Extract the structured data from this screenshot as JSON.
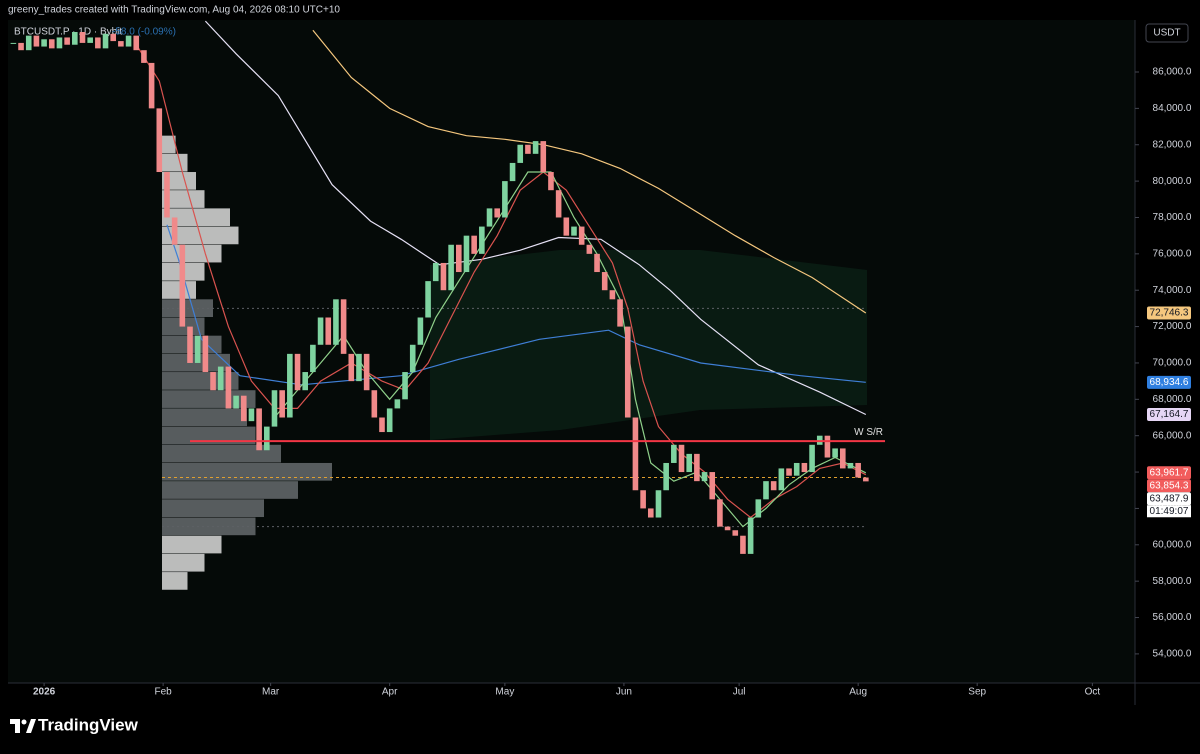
{
  "chart_data": {
    "type": "candlestick",
    "credit": "greeny_trades created with TradingView.com, Aug 04, 2026 08:10 UTC+10",
    "title": "BTCUSDT.P · 1D · Bybit",
    "change": "-58.0 (-0.09%)",
    "currency": "USDT",
    "brand": "TradingView",
    "up_color": "#7fd3a0",
    "down_color": "#f08a8a",
    "x": [
      -8,
      -6,
      -4,
      -2,
      0,
      2,
      4,
      6,
      8,
      10,
      12,
      14,
      16,
      18,
      20,
      22,
      24,
      26,
      28,
      30,
      32,
      34,
      36,
      38,
      40,
      42,
      44,
      46,
      48,
      50,
      52,
      54,
      56,
      58,
      60,
      62,
      64,
      66,
      68,
      70,
      72,
      74,
      76,
      78,
      80,
      82,
      84,
      86,
      88,
      90,
      92,
      94,
      96,
      98,
      100,
      102,
      104,
      106,
      108,
      110,
      112,
      114,
      116,
      118,
      120,
      122,
      124,
      126,
      128,
      130,
      132,
      134,
      136,
      138,
      140,
      142,
      144,
      146,
      148,
      150,
      152,
      154,
      156,
      158,
      160,
      162,
      164,
      166,
      168,
      170,
      172,
      174,
      176,
      178,
      180,
      182,
      184,
      186,
      188,
      190,
      192,
      194,
      196,
      198,
      200,
      202,
      204,
      206,
      208,
      210,
      212,
      214
    ],
    "values": [
      87600,
      87200,
      88000,
      87400,
      87800,
      87300,
      87900,
      87500,
      88200,
      87600,
      87900,
      87300,
      88100,
      87700,
      87400,
      88000,
      87200,
      86500,
      84000,
      80500,
      78000,
      76500,
      72000,
      70000,
      71500,
      69500,
      68500,
      69800,
      67500,
      68200,
      66800,
      67500,
      65200,
      66500,
      68500,
      67000,
      70500,
      68500,
      69500,
      71000,
      72500,
      71000,
      73500,
      70500,
      69000,
      70500,
      68500,
      67000,
      66200,
      67500,
      68000,
      69500,
      71000,
      72500,
      74500,
      75500,
      74000,
      76500,
      75000,
      77000,
      76000,
      77500,
      78500,
      78000,
      80000,
      81000,
      82000,
      81500,
      82200,
      80500,
      79500,
      78000,
      77000,
      77500,
      76500,
      76000,
      75000,
      74000,
      73500,
      72000,
      67000,
      63000,
      62000,
      61500,
      63000,
      64500,
      65500,
      64000,
      65000,
      63500,
      64000,
      62500,
      61000,
      60800,
      60500,
      59500,
      61500,
      62500,
      63500,
      63000,
      64200,
      63800,
      64500,
      64000,
      65500,
      66000,
      64800,
      65300,
      64200,
      64500,
      63700,
      63487.9
    ],
    "lines": [
      {
        "color": "#f5c77e",
        "x": [
          70,
          80,
          90,
          100,
          110,
          120,
          130,
          140,
          150,
          160,
          170,
          180,
          190,
          200,
          214
        ],
        "values": [
          88300,
          85700,
          84000,
          83000,
          82500,
          82300,
          82000,
          81500,
          80700,
          79600,
          78300,
          77000,
          75800,
          74700,
          72746.3
        ]
      },
      {
        "color": "#e6e1f5",
        "x": [
          42,
          50,
          61,
          75,
          85,
          93,
          103,
          114,
          124,
          134,
          145,
          155,
          163,
          171,
          186,
          202,
          214
        ],
        "values": [
          88800,
          87000,
          84700,
          79800,
          77800,
          76800,
          75400,
          75700,
          76200,
          76900,
          76800,
          75400,
          74000,
          72400,
          69900,
          68400,
          67164.7
        ]
      },
      {
        "color": "#3f7fd6",
        "x": [
          32,
          35,
          41,
          51,
          67,
          93,
          108,
          129,
          147,
          155,
          171,
          197,
          214
        ],
        "values": [
          77600,
          75700,
          71300,
          69300,
          68800,
          69300,
          70200,
          71300,
          71800,
          71000,
          70000,
          69300,
          68934.6
        ]
      },
      {
        "color": "#d9534f",
        "x": [
          24,
          30,
          36,
          42,
          48,
          54,
          60,
          66,
          72,
          80,
          88,
          94,
          100,
          106,
          112,
          118,
          124,
          130,
          136,
          142,
          148,
          152,
          156,
          160,
          166,
          172,
          178,
          184,
          190,
          196,
          202,
          208,
          214
        ],
        "values": [
          87500,
          85500,
          80500,
          76000,
          72000,
          69000,
          67500,
          67500,
          69000,
          70000,
          69000,
          68500,
          70000,
          72500,
          75000,
          77000,
          79500,
          80500,
          79500,
          77500,
          75500,
          73000,
          69000,
          66500,
          65000,
          64000,
          62500,
          61500,
          62500,
          63200,
          64200,
          64500,
          63854.3
        ]
      },
      {
        "color": "#8fd08a",
        "x": [
          60,
          66,
          72,
          78,
          84,
          90,
          96,
          102,
          108,
          114,
          120,
          126,
          132,
          138,
          144,
          150,
          154,
          158,
          164,
          170,
          176,
          182,
          188,
          194,
          200,
          206,
          214
        ],
        "values": [
          67000,
          68500,
          70000,
          71500,
          69500,
          68000,
          69500,
          72500,
          74500,
          76500,
          78500,
          80500,
          80500,
          78000,
          76000,
          73500,
          68000,
          64500,
          63500,
          64000,
          62500,
          61000,
          62000,
          63300,
          64200,
          64800,
          63961.7
        ]
      }
    ],
    "price_labels": [
      {
        "value": 72746.3,
        "label": "72,746.3",
        "color": "#f5c77e"
      },
      {
        "value": 68934.6,
        "label": "68,934.6",
        "color": "#2f7fe0"
      },
      {
        "value": 67164.7,
        "label": "67,164.7",
        "color": "#e6d6f5"
      },
      {
        "value": 63961.7,
        "label": "63,961.7",
        "color": "#f25c5c"
      },
      {
        "value": 63854.3,
        "label": "63,854.3",
        "color": "#f25c5c"
      },
      {
        "value": 63487.9,
        "label": "63,487.9",
        "color": "#ffffff"
      }
    ],
    "countdown": "01:49:07",
    "hline": {
      "value": 65700,
      "label": "W S/R",
      "color": "#f23645",
      "x": [
        38,
        219
      ]
    },
    "volume_profile": {
      "levels": [
        58000,
        59000,
        60000,
        61000,
        62000,
        63000,
        64000,
        65000,
        66000,
        67000,
        68000,
        69000,
        70000,
        71000,
        72000,
        73000,
        74000,
        75000,
        76000,
        77000,
        78000,
        79000,
        80000,
        81000,
        82000
      ],
      "volumes": [
        15,
        25,
        35,
        55,
        60,
        80,
        100,
        70,
        55,
        50,
        55,
        45,
        40,
        35,
        25,
        30,
        20,
        25,
        35,
        45,
        40,
        25,
        20,
        15,
        8
      ],
      "vah": 73000,
      "val": 61000,
      "poc": 63700
    },
    "xlim": [
      -9.4,
      284.1
    ],
    "xticks": [
      {
        "value": 0,
        "label": "2026"
      },
      {
        "value": 31,
        "label": "Feb"
      },
      {
        "value": 59,
        "label": "Mar"
      },
      {
        "value": 90,
        "label": "Apr"
      },
      {
        "value": 120,
        "label": "May"
      },
      {
        "value": 151,
        "label": "Jun"
      },
      {
        "value": 181,
        "label": "Jul"
      },
      {
        "value": 212,
        "label": "Aug"
      },
      {
        "value": 243,
        "label": "Sep"
      },
      {
        "value": 273,
        "label": "Oct"
      }
    ],
    "ylim": [
      52400,
      88860
    ],
    "yticks": [
      {
        "value": 54000,
        "label": "54,000.0"
      },
      {
        "value": 56000,
        "label": "56,000.0"
      },
      {
        "value": 58000,
        "label": "58,000.0"
      },
      {
        "value": 60000,
        "label": "60,000.0"
      },
      {
        "value": 62000,
        "label": "62,000.0"
      },
      {
        "value": 64000,
        "label": "64,000.0"
      },
      {
        "value": 66000,
        "label": "66,000.0"
      },
      {
        "value": 68000,
        "label": "68,000.0"
      },
      {
        "value": 70000,
        "label": "70,000.0"
      },
      {
        "value": 72000,
        "label": "72,000.0"
      },
      {
        "value": 74000,
        "label": "74,000.0"
      },
      {
        "value": 76000,
        "label": "76,000.0"
      },
      {
        "value": 78000,
        "label": "78,000.0"
      },
      {
        "value": 80000,
        "label": "80,000.0"
      },
      {
        "value": 82000,
        "label": "82,000.0"
      },
      {
        "value": 84000,
        "label": "84,000.0"
      },
      {
        "value": 86000,
        "label": "86,000.0"
      }
    ]
  }
}
